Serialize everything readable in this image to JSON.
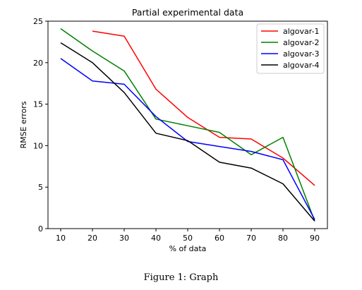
{
  "chart_data": {
    "type": "line",
    "title": "Partial experimental data",
    "xlabel": "% of data",
    "ylabel": "RMSE errors",
    "xlim": [
      6,
      94
    ],
    "ylim": [
      0,
      25
    ],
    "xticks": [
      10,
      20,
      30,
      40,
      50,
      60,
      70,
      80,
      90
    ],
    "yticks": [
      0,
      5,
      10,
      15,
      20,
      25
    ],
    "grid": false,
    "legend_position": "top-right",
    "series": [
      {
        "name": "algovar-1",
        "color": "#ff0000",
        "x": [
          20,
          30,
          40,
          50,
          60,
          70,
          80,
          90
        ],
        "y": [
          23.8,
          23.2,
          16.8,
          13.4,
          11.0,
          10.8,
          8.5,
          5.2
        ]
      },
      {
        "name": "algovar-2",
        "color": "#008000",
        "x": [
          10,
          20,
          30,
          40,
          50,
          60,
          70,
          80,
          90
        ],
        "y": [
          24.1,
          21.4,
          19.0,
          13.2,
          12.4,
          11.6,
          8.9,
          11.0,
          0.9
        ]
      },
      {
        "name": "algovar-3",
        "color": "#0000ff",
        "x": [
          10,
          20,
          30,
          40,
          50,
          60,
          70,
          80,
          90
        ],
        "y": [
          20.5,
          17.8,
          17.4,
          13.5,
          10.5,
          9.9,
          9.3,
          8.3,
          1.1
        ]
      },
      {
        "name": "algovar-4",
        "color": "#000000",
        "x": [
          10,
          20,
          30,
          40,
          50,
          60,
          70,
          80,
          90
        ],
        "y": [
          22.4,
          20.0,
          16.4,
          11.5,
          10.6,
          8.0,
          7.3,
          5.4,
          0.9
        ]
      }
    ]
  },
  "caption": "Figure 1: Graph"
}
